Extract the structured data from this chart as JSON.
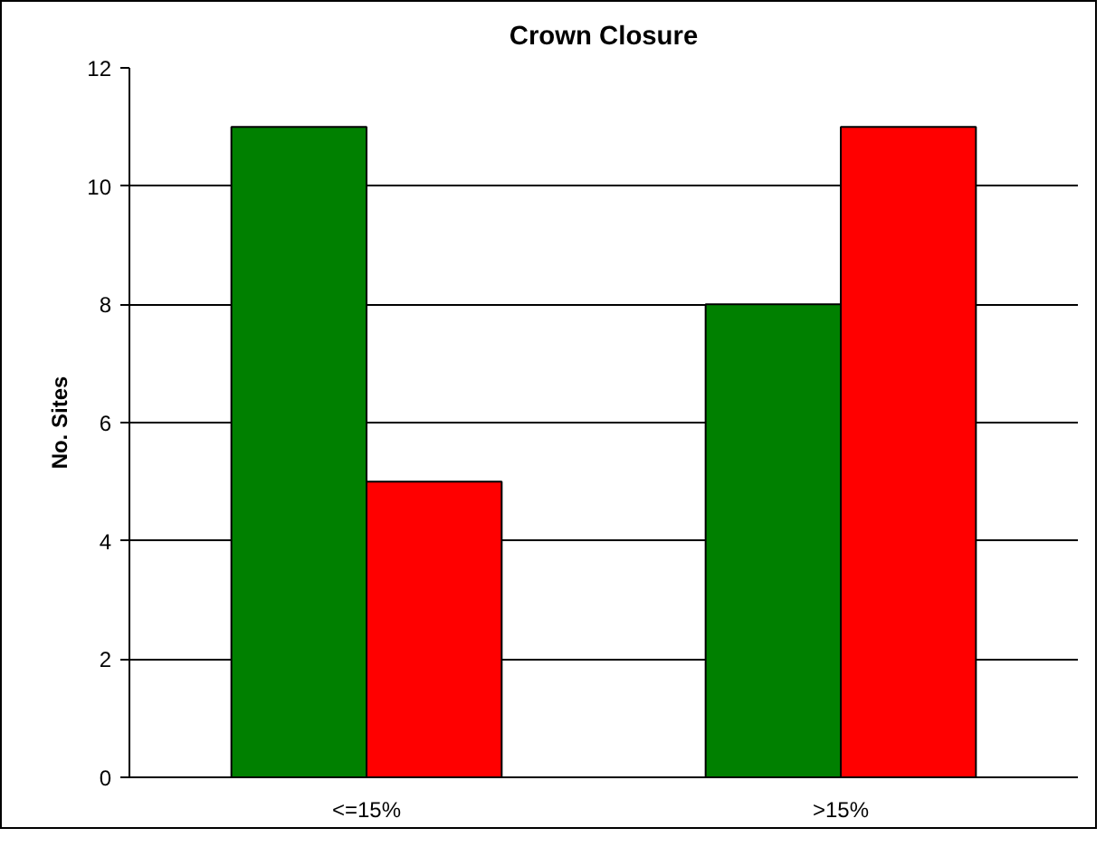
{
  "chart_data": {
    "type": "bar",
    "title": "Crown Closure",
    "ylabel": "No. Sites",
    "categories": [
      "<=15%",
      ">15%"
    ],
    "series": [
      {
        "color": "#008000",
        "values": [
          11,
          8
        ]
      },
      {
        "color": "#ff0000",
        "values": [
          5,
          11
        ]
      }
    ],
    "ylim": [
      0,
      12
    ],
    "yticks": [
      0,
      2,
      4,
      6,
      8,
      10,
      12
    ],
    "grid": "y"
  }
}
